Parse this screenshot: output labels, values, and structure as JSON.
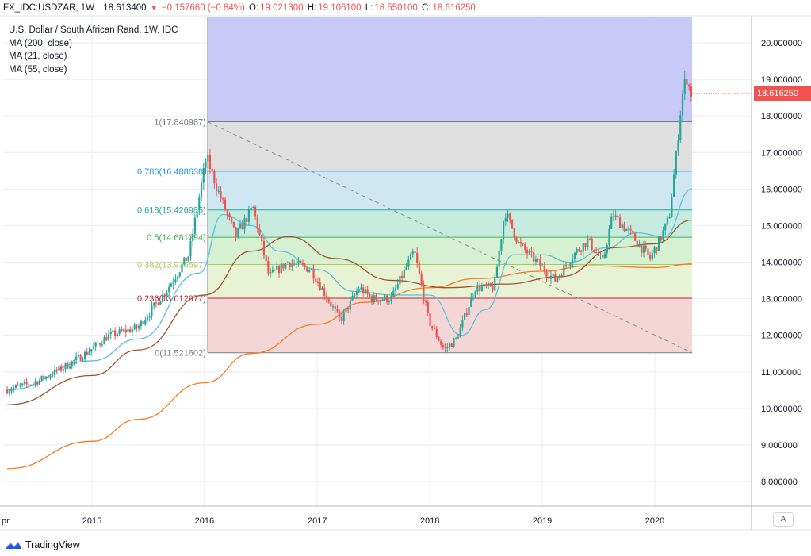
{
  "header": {
    "symbol": "FX_IDC:USDZAR, 1W",
    "last": "18.613400",
    "change": "−0.157660 (−0.84%)",
    "open_label": "O:",
    "open": "19.021300",
    "high_label": "H:",
    "high": "19.106100",
    "low_label": "L:",
    "low": "18.550100",
    "close_label": "C:",
    "close": "18.616250"
  },
  "legend": {
    "title": "U.S. Dollar / South African Rand, 1W, IDC",
    "ma200": "MA (200, close)",
    "ma21": "MA (21, close)",
    "ma55": "MA (55, close)"
  },
  "price_tag": "18.616250",
  "auto_button": "A",
  "branding": "TradingView",
  "colors": {
    "up": "#26a69a",
    "down": "#ef5350",
    "ma200": "#f57c1f",
    "ma21": "#5bc0de",
    "ma55": "#a0522d",
    "grid": "#e9ecf1",
    "fib_top": "#c9c9f7"
  },
  "chart_data": {
    "type": "candlestick",
    "title": "U.S. Dollar / South African Rand, 1W, IDC",
    "ylim": [
      7.2,
      20.8
    ],
    "xlim": [
      "2014-04-01",
      "2020-12-31"
    ],
    "y_ticks": [
      "8.000000",
      "9.000000",
      "10.000000",
      "11.000000",
      "12.000000",
      "13.000000",
      "14.000000",
      "15.000000",
      "16.000000",
      "17.000000",
      "18.000000",
      "19.000000",
      "20.000000"
    ],
    "x_ticks": [
      "pr",
      "2015",
      "2016",
      "2017",
      "2018",
      "2019",
      "2020"
    ],
    "fibonacci": {
      "start": "2016-01-11",
      "end": "2020-05-01",
      "levels": [
        {
          "ratio": "1",
          "value": 17.840987,
          "label": "1(17.840987)"
        },
        {
          "ratio": "0.786",
          "value": 16.488638,
          "label": "0.786(16.488638)"
        },
        {
          "ratio": "0.618",
          "value": 15.426985,
          "label": "0.618(15.426985)"
        },
        {
          "ratio": "0.5",
          "value": 14.681294,
          "label": "0.5(14.681294)"
        },
        {
          "ratio": "0.382",
          "value": 13.935597,
          "label": "0.382(13.935597)"
        },
        {
          "ratio": "0.236",
          "value": 13.012977,
          "label": "0.236(13.012977)"
        },
        {
          "ratio": "0",
          "value": 11.521602,
          "label": "0(11.521602)"
        }
      ],
      "top_zone_to": 20.7
    },
    "trend_line": {
      "from": {
        "x": "2016-01-11",
        "y": 17.84
      },
      "to": {
        "x": "2020-05-01",
        "y": 11.52
      }
    },
    "anchors": [
      {
        "x": "2014-04-01",
        "y": 10.5
      },
      {
        "x": "2014-07-01",
        "y": 10.7
      },
      {
        "x": "2014-10-01",
        "y": 11.1
      },
      {
        "x": "2014-12-15",
        "y": 11.5
      },
      {
        "x": "2015-03-01",
        "y": 12.0
      },
      {
        "x": "2015-06-01",
        "y": 12.2
      },
      {
        "x": "2015-09-01",
        "y": 13.2
      },
      {
        "x": "2015-11-15",
        "y": 14.2
      },
      {
        "x": "2016-01-11",
        "y": 16.9
      },
      {
        "x": "2016-02-15",
        "y": 16.0
      },
      {
        "x": "2016-04-15",
        "y": 14.7
      },
      {
        "x": "2016-06-10",
        "y": 15.5
      },
      {
        "x": "2016-08-01",
        "y": 13.6
      },
      {
        "x": "2016-10-01",
        "y": 14.0
      },
      {
        "x": "2016-12-15",
        "y": 13.8
      },
      {
        "x": "2017-03-20",
        "y": 12.4
      },
      {
        "x": "2017-05-20",
        "y": 13.3
      },
      {
        "x": "2017-07-01",
        "y": 13.0
      },
      {
        "x": "2017-09-01",
        "y": 13.0
      },
      {
        "x": "2017-11-15",
        "y": 14.3
      },
      {
        "x": "2018-01-01",
        "y": 12.4
      },
      {
        "x": "2018-02-20",
        "y": 11.6
      },
      {
        "x": "2018-04-01",
        "y": 11.9
      },
      {
        "x": "2018-06-01",
        "y": 13.3
      },
      {
        "x": "2018-08-01",
        "y": 13.3
      },
      {
        "x": "2018-09-05",
        "y": 15.4
      },
      {
        "x": "2018-10-20",
        "y": 14.5
      },
      {
        "x": "2019-01-10",
        "y": 13.8
      },
      {
        "x": "2019-02-15",
        "y": 13.5
      },
      {
        "x": "2019-04-15",
        "y": 14.2
      },
      {
        "x": "2019-06-01",
        "y": 14.6
      },
      {
        "x": "2019-07-20",
        "y": 14.0
      },
      {
        "x": "2019-08-20",
        "y": 15.3
      },
      {
        "x": "2019-10-15",
        "y": 14.8
      },
      {
        "x": "2019-12-20",
        "y": 14.1
      },
      {
        "x": "2020-01-20",
        "y": 14.6
      },
      {
        "x": "2020-02-20",
        "y": 15.2
      },
      {
        "x": "2020-03-15",
        "y": 17.0
      },
      {
        "x": "2020-04-01",
        "y": 18.5
      },
      {
        "x": "2020-04-15",
        "y": 19.1
      },
      {
        "x": "2020-04-30",
        "y": 18.62
      }
    ],
    "series": [
      {
        "name": "MA (200, close)",
        "points": [
          {
            "x": "2014-04-01",
            "y": 8.35
          },
          {
            "x": "2015-01-01",
            "y": 9.1
          },
          {
            "x": "2015-06-01",
            "y": 9.7
          },
          {
            "x": "2016-01-01",
            "y": 10.7
          },
          {
            "x": "2016-06-01",
            "y": 11.5
          },
          {
            "x": "2017-01-01",
            "y": 12.3
          },
          {
            "x": "2017-06-01",
            "y": 12.9
          },
          {
            "x": "2018-01-01",
            "y": 13.3
          },
          {
            "x": "2018-06-01",
            "y": 13.55
          },
          {
            "x": "2019-01-01",
            "y": 13.75
          },
          {
            "x": "2019-06-01",
            "y": 13.9
          },
          {
            "x": "2020-01-01",
            "y": 13.85
          },
          {
            "x": "2020-04-30",
            "y": 13.95
          }
        ]
      },
      {
        "name": "MA (21, close)",
        "points": [
          {
            "x": "2014-04-01",
            "y": 10.5
          },
          {
            "x": "2015-01-01",
            "y": 11.3
          },
          {
            "x": "2015-06-01",
            "y": 11.9
          },
          {
            "x": "2015-12-15",
            "y": 13.7
          },
          {
            "x": "2016-03-01",
            "y": 15.3
          },
          {
            "x": "2016-06-01",
            "y": 15.0
          },
          {
            "x": "2016-09-01",
            "y": 14.3
          },
          {
            "x": "2017-01-01",
            "y": 13.8
          },
          {
            "x": "2017-05-01",
            "y": 13.2
          },
          {
            "x": "2017-09-01",
            "y": 13.1
          },
          {
            "x": "2018-01-01",
            "y": 13.1
          },
          {
            "x": "2018-04-15",
            "y": 12.0
          },
          {
            "x": "2018-07-01",
            "y": 12.7
          },
          {
            "x": "2018-10-01",
            "y": 14.2
          },
          {
            "x": "2019-01-01",
            "y": 14.2
          },
          {
            "x": "2019-04-01",
            "y": 14.0
          },
          {
            "x": "2019-08-01",
            "y": 14.4
          },
          {
            "x": "2019-11-01",
            "y": 14.8
          },
          {
            "x": "2020-02-01",
            "y": 14.7
          },
          {
            "x": "2020-04-30",
            "y": 16.0
          }
        ]
      },
      {
        "name": "MA (55, close)",
        "points": [
          {
            "x": "2014-04-01",
            "y": 10.1
          },
          {
            "x": "2015-01-01",
            "y": 10.9
          },
          {
            "x": "2015-06-01",
            "y": 11.6
          },
          {
            "x": "2016-01-01",
            "y": 13.1
          },
          {
            "x": "2016-06-01",
            "y": 14.3
          },
          {
            "x": "2016-10-01",
            "y": 14.7
          },
          {
            "x": "2017-03-01",
            "y": 14.1
          },
          {
            "x": "2017-09-01",
            "y": 13.5
          },
          {
            "x": "2018-03-01",
            "y": 13.3
          },
          {
            "x": "2018-09-01",
            "y": 13.4
          },
          {
            "x": "2019-03-01",
            "y": 13.6
          },
          {
            "x": "2019-09-01",
            "y": 14.4
          },
          {
            "x": "2020-01-01",
            "y": 14.5
          },
          {
            "x": "2020-04-30",
            "y": 15.15
          }
        ]
      }
    ]
  }
}
